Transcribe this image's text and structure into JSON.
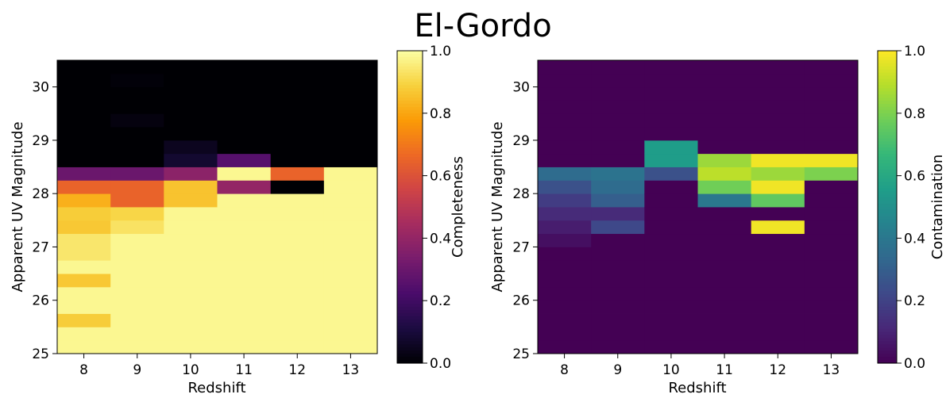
{
  "title": "El-Gordo",
  "chart_data": [
    {
      "type": "heatmap",
      "colormap": "inferno",
      "xlabel": "Redshift",
      "ylabel": "Apparent UV Magnitude",
      "colorbar_label": "Completeness",
      "x_ticks": [
        "8",
        "9",
        "10",
        "11",
        "12",
        "13"
      ],
      "y_ticks": [
        "25",
        "26",
        "27",
        "28",
        "29",
        "30"
      ],
      "colorbar_ticks": [
        "0.0",
        "0.2",
        "0.4",
        "0.6",
        "0.8",
        "1.0"
      ],
      "x_range": [
        7.5,
        13.5
      ],
      "y_range": [
        25.0,
        30.5
      ],
      "clim": [
        0,
        1
      ],
      "x_centers": [
        8,
        9,
        10,
        11,
        12,
        13
      ],
      "y_bin_edges": [
        25.0,
        25.25,
        25.5,
        25.75,
        26.0,
        26.25,
        26.5,
        26.75,
        27.0,
        27.25,
        27.5,
        27.75,
        28.0,
        28.25,
        28.5,
        28.75,
        29.0,
        29.25,
        29.5,
        29.75,
        30.0,
        30.25,
        30.5
      ],
      "values_by_x": [
        [
          0.98,
          0.98,
          0.88,
          0.98,
          0.98,
          0.87,
          0.98,
          0.94,
          0.94,
          0.87,
          0.88,
          0.82,
          0.65,
          0.3,
          0.0,
          0.0,
          0.0,
          0.0,
          0.0,
          0.0,
          0.0,
          0.0
        ],
        [
          0.98,
          0.98,
          0.98,
          0.98,
          0.98,
          0.98,
          0.98,
          0.98,
          0.98,
          0.93,
          0.9,
          0.65,
          0.65,
          0.3,
          0.0,
          0.0,
          0.0,
          0.02,
          0.0,
          0.0,
          0.01,
          0.0
        ],
        [
          0.98,
          0.98,
          0.98,
          0.98,
          0.98,
          0.98,
          0.98,
          0.98,
          0.98,
          0.98,
          0.98,
          0.86,
          0.86,
          0.38,
          0.08,
          0.05,
          0.0,
          0.0,
          0.0,
          0.0,
          0.0,
          0.0
        ],
        [
          0.98,
          0.98,
          0.98,
          0.98,
          0.98,
          0.98,
          0.98,
          0.98,
          0.98,
          0.98,
          0.98,
          0.98,
          0.4,
          0.98,
          0.25,
          0.0,
          0.0,
          0.0,
          0.0,
          0.0,
          0.0,
          0.0
        ],
        [
          0.98,
          0.98,
          0.98,
          0.98,
          0.98,
          0.98,
          0.98,
          0.98,
          0.98,
          0.98,
          0.98,
          0.98,
          0.0,
          0.65,
          0.0,
          0.0,
          0.0,
          0.0,
          0.0,
          0.0,
          0.0,
          0.0
        ],
        [
          0.98,
          0.98,
          0.98,
          0.98,
          0.98,
          0.98,
          0.98,
          0.98,
          0.98,
          0.98,
          0.98,
          0.98,
          0.98,
          0.98,
          0.0,
          0.0,
          0.0,
          0.0,
          0.0,
          0.0,
          0.0,
          0.0
        ]
      ]
    },
    {
      "type": "heatmap",
      "colormap": "viridis",
      "xlabel": "Redshift",
      "ylabel": "Apparent UV Magnitude",
      "colorbar_label": "Contamination",
      "x_ticks": [
        "8",
        "9",
        "10",
        "11",
        "12",
        "13"
      ],
      "y_ticks": [
        "25",
        "26",
        "27",
        "28",
        "29",
        "30"
      ],
      "colorbar_ticks": [
        "0.0",
        "0.2",
        "0.4",
        "0.6",
        "0.8",
        "1.0"
      ],
      "x_range": [
        7.5,
        13.5
      ],
      "y_range": [
        25.0,
        30.5
      ],
      "clim": [
        0,
        1
      ],
      "x_centers": [
        8,
        9,
        10,
        11,
        12,
        13
      ],
      "y_bin_edges": [
        25.0,
        25.25,
        25.5,
        25.75,
        26.0,
        26.25,
        26.5,
        26.75,
        27.0,
        27.25,
        27.5,
        27.75,
        28.0,
        28.25,
        28.5,
        28.75,
        29.0,
        29.25,
        29.5,
        29.75,
        30.0,
        30.25,
        30.5
      ],
      "values_by_x": [
        [
          0,
          0,
          0,
          0,
          0,
          0,
          0,
          0,
          0.04,
          0.08,
          0.12,
          0.18,
          0.25,
          0.35,
          0,
          0,
          0,
          0,
          0,
          0,
          0,
          0
        ],
        [
          0,
          0,
          0,
          0,
          0,
          0,
          0,
          0,
          0,
          0.22,
          0.12,
          0.3,
          0.35,
          0.38,
          0,
          0,
          0,
          0,
          0,
          0,
          0,
          0
        ],
        [
          0,
          0,
          0,
          0,
          0,
          0,
          0,
          0,
          0,
          0,
          0,
          0,
          0,
          0.25,
          0.55,
          0.55,
          0,
          0,
          0,
          0,
          0,
          0
        ],
        [
          0,
          0,
          0,
          0,
          0,
          0,
          0,
          0,
          0,
          0,
          0,
          0.4,
          0.78,
          0.9,
          0.85,
          0,
          0,
          0,
          0,
          0,
          0,
          0
        ],
        [
          0,
          0,
          0,
          0,
          0,
          0,
          0,
          0,
          0,
          0.98,
          0,
          0.75,
          0.98,
          0.85,
          0.98,
          0,
          0,
          0,
          0,
          0,
          0,
          0
        ],
        [
          0,
          0,
          0,
          0,
          0,
          0,
          0,
          0,
          0,
          0,
          0,
          0,
          0,
          0.8,
          0.98,
          0,
          0,
          0,
          0,
          0,
          0,
          0
        ]
      ]
    }
  ]
}
